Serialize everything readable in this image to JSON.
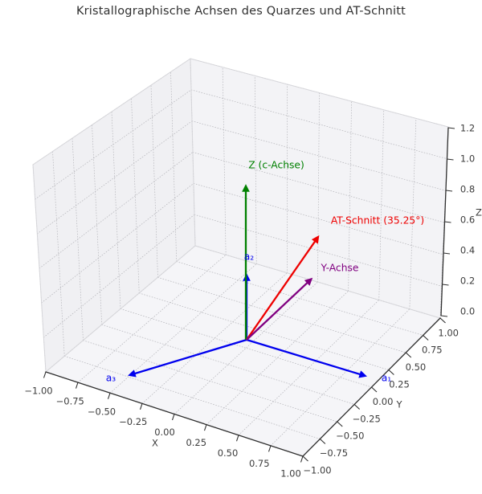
{
  "title": "Kristallographische Achsen des Quarzes und AT-Schnitt",
  "chart_data": {
    "type": "3d-vector-plot",
    "title": "Kristallographische Achsen des Quarzes und AT-Schnitt",
    "grid": true,
    "grid_style": "dotted",
    "background_color": "#ffffff",
    "pane_colors": {
      "left_wall": "#f0f0f3",
      "right_wall": "#f3f3f6",
      "floor": "#f5f5f8"
    },
    "axes": {
      "x": {
        "label": "X",
        "range": [
          -1,
          1
        ],
        "ticks": [
          "−1.00",
          "−0.75",
          "−0.50",
          "−0.25",
          "0.00",
          "0.25",
          "0.50",
          "0.75",
          "1.00"
        ]
      },
      "y": {
        "label": "Y",
        "range": [
          -1,
          1
        ],
        "ticks": [
          "−1.00",
          "−0.75",
          "−0.50",
          "−0.25",
          "0.00",
          "0.25",
          "0.50",
          "0.75",
          "1.00"
        ]
      },
      "z": {
        "label": "Z",
        "range": [
          0,
          1.2
        ],
        "ticks": [
          "0.0",
          "0.2",
          "0.4",
          "0.6",
          "0.8",
          "1.0",
          "1.2"
        ]
      }
    },
    "vectors": [
      {
        "id": "a1",
        "label": "a₁",
        "color": "#0000ee",
        "direction_xyz": [
          1,
          0,
          0
        ]
      },
      {
        "id": "a3",
        "label": "a₃",
        "color": "#0000ee",
        "direction_xyz": [
          -0.5,
          -0.866,
          0
        ]
      },
      {
        "id": "a2",
        "label": "a₂",
        "color": "#0000ee",
        "direction_xyz": [
          -0.5,
          0.866,
          0
        ]
      },
      {
        "id": "c-axis",
        "label": "Z (c-Achse)",
        "color": "#008000",
        "direction_xyz": [
          0,
          0,
          1
        ]
      },
      {
        "id": "at-cut",
        "label": "AT-Schnitt (35.25°)",
        "color": "#ee0000",
        "direction_xyz": [
          0,
          0.816,
          0.577
        ],
        "angle_deg": 35.25
      },
      {
        "id": "y-axis",
        "label": "Y-Achse",
        "color": "#800080",
        "direction_xyz": [
          0,
          1,
          0
        ]
      }
    ]
  }
}
